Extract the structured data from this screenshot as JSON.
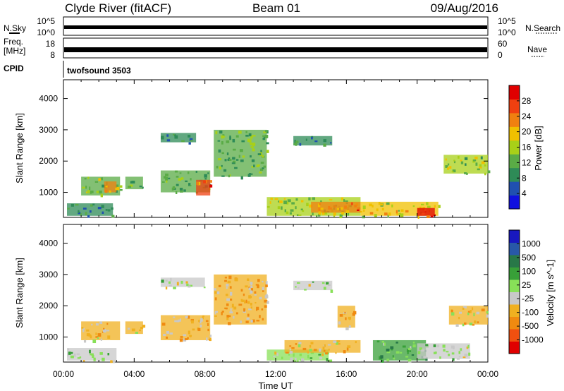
{
  "header": {
    "station": "Clyde River (fitACF)",
    "beam": "Beam 01",
    "date": "09/Aug/2016"
  },
  "strips": {
    "noise": {
      "left_label": "N.Sky",
      "right_label": "N.Search",
      "left_ticks": [
        "10^5",
        "10^0"
      ],
      "right_ticks": [
        "10^5",
        "10^0"
      ]
    },
    "freq": {
      "left_label_1": "Freq.",
      "left_label_2": "[MHz]",
      "left_ticks": [
        "18",
        "8"
      ],
      "right_label": "Nave",
      "right_ticks": [
        "60",
        "0"
      ]
    },
    "cpid": {
      "label": "CPID",
      "value": "twofsound 3503"
    }
  },
  "colors": {
    "power_scale": [
      "#1010e0",
      "#2050b0",
      "#2e8b57",
      "#5aab46",
      "#a8d018",
      "#f0c000",
      "#f08010",
      "#f04010",
      "#e00000"
    ],
    "velocity_scale": [
      "#1818c0",
      "#2858a8",
      "#287848",
      "#38a038",
      "#88e058",
      "#c8c8c8",
      "#f0b020",
      "#f08a10",
      "#f05010",
      "#e00000"
    ]
  },
  "chart_data": [
    {
      "type": "heatmap",
      "name": "power",
      "ylabel": "Slant Range [km]",
      "xlabel": "Time UT",
      "x_ticks": [
        "00:00",
        "04:00",
        "08:00",
        "12:00",
        "16:00",
        "20:00",
        "00:00"
      ],
      "y_ticks": [
        1000,
        2000,
        3000,
        4000
      ],
      "ylim": [
        200,
        4600
      ],
      "xlim_hours": [
        0,
        24
      ],
      "colorbar": {
        "label": "Power [dB]",
        "ticks": [
          4,
          8,
          12,
          16,
          20,
          24,
          28
        ],
        "range": [
          0,
          32
        ]
      },
      "regions": [
        {
          "t0": 0.2,
          "t1": 2.8,
          "r0": 250,
          "r1": 650,
          "v": 10
        },
        {
          "t0": 1.0,
          "t1": 3.2,
          "r0": 900,
          "r1": 1500,
          "v": 14
        },
        {
          "t0": 2.3,
          "t1": 3.0,
          "r0": 1000,
          "r1": 1350,
          "v": 22
        },
        {
          "t0": 3.5,
          "t1": 4.5,
          "r0": 1100,
          "r1": 1500,
          "v": 11
        },
        {
          "t0": 5.5,
          "t1": 8.3,
          "r0": 1000,
          "r1": 1700,
          "v": 12
        },
        {
          "t0": 7.5,
          "t1": 8.3,
          "r0": 900,
          "r1": 1400,
          "v": 26
        },
        {
          "t0": 5.5,
          "t1": 7.5,
          "r0": 2600,
          "r1": 2900,
          "v": 9
        },
        {
          "t0": 8.5,
          "t1": 11.5,
          "r0": 1500,
          "r1": 3000,
          "v": 12
        },
        {
          "t0": 11.5,
          "t1": 16.8,
          "r0": 250,
          "r1": 850,
          "v": 16
        },
        {
          "t0": 14.0,
          "t1": 16.8,
          "r0": 350,
          "r1": 700,
          "v": 24
        },
        {
          "t0": 16.8,
          "t1": 21.2,
          "r0": 250,
          "r1": 700,
          "v": 18
        },
        {
          "t0": 20.0,
          "t1": 21.0,
          "r0": 250,
          "r1": 500,
          "v": 29
        },
        {
          "t0": 21.5,
          "t1": 24.0,
          "r0": 1600,
          "r1": 2200,
          "v": 15
        },
        {
          "t0": 13.0,
          "t1": 15.2,
          "r0": 2500,
          "r1": 2800,
          "v": 8
        }
      ]
    },
    {
      "type": "heatmap",
      "name": "velocity",
      "ylabel": "Slant Range [km]",
      "xlabel": "Time UT",
      "x_ticks": [
        "00:00",
        "04:00",
        "08:00",
        "12:00",
        "16:00",
        "20:00",
        "00:00"
      ],
      "y_ticks": [
        1000,
        2000,
        3000,
        4000
      ],
      "ylim": [
        200,
        4600
      ],
      "xlim_hours": [
        0,
        24
      ],
      "colorbar": {
        "label": "Velocity [m s^-1]",
        "ticks": [
          1000,
          500,
          100,
          25,
          -25,
          -100,
          -500,
          -1000
        ],
        "range": [
          -1200,
          1200
        ]
      },
      "regions": [
        {
          "t0": 0.2,
          "t1": 3.0,
          "r0": 250,
          "r1": 650,
          "v": 0
        },
        {
          "t0": 1.0,
          "t1": 3.2,
          "r0": 900,
          "r1": 1500,
          "v": -300
        },
        {
          "t0": 3.5,
          "t1": 4.5,
          "r0": 1100,
          "r1": 1500,
          "v": -300
        },
        {
          "t0": 5.5,
          "t1": 8.3,
          "r0": 900,
          "r1": 1700,
          "v": -350
        },
        {
          "t0": 5.5,
          "t1": 8.0,
          "r0": 2600,
          "r1": 2900,
          "v": 0
        },
        {
          "t0": 8.5,
          "t1": 11.5,
          "r0": 1400,
          "r1": 3000,
          "v": -350
        },
        {
          "t0": 11.5,
          "t1": 15.0,
          "r0": 250,
          "r1": 600,
          "v": 60
        },
        {
          "t0": 12.5,
          "t1": 16.8,
          "r0": 500,
          "r1": 900,
          "v": -300
        },
        {
          "t0": 15.5,
          "t1": 16.5,
          "r0": 1300,
          "r1": 2000,
          "v": -300
        },
        {
          "t0": 17.5,
          "t1": 20.5,
          "r0": 250,
          "r1": 900,
          "v": 300
        },
        {
          "t0": 20.0,
          "t1": 23.0,
          "r0": 300,
          "r1": 800,
          "v": 0
        },
        {
          "t0": 21.8,
          "t1": 24.0,
          "r0": 1400,
          "r1": 2000,
          "v": -250
        },
        {
          "t0": 13.0,
          "t1": 15.2,
          "r0": 2500,
          "r1": 2800,
          "v": 0
        }
      ]
    }
  ]
}
